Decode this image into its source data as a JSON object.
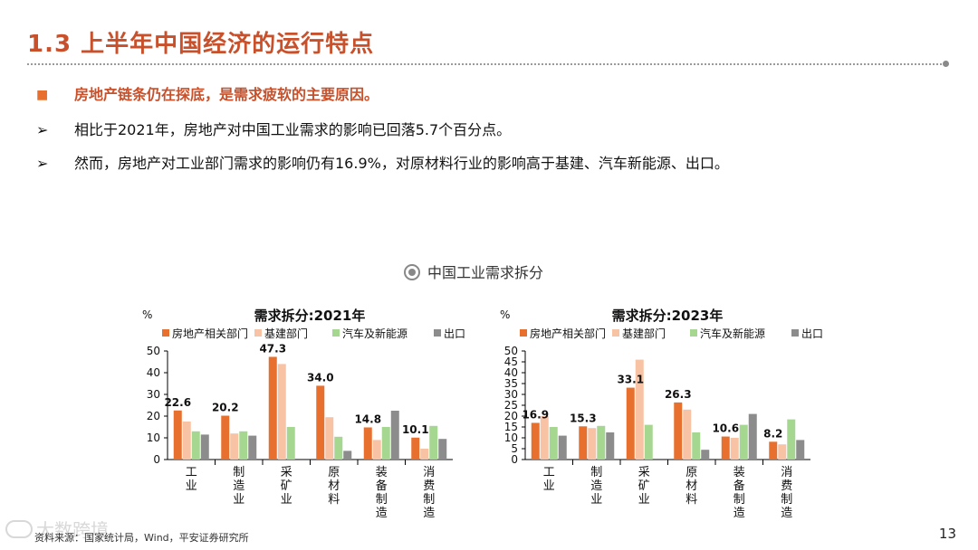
{
  "slide": {
    "title": "1.3 上半年中国经济的运行特点",
    "bullets": [
      {
        "marker": "■",
        "text": "房地产链条仍在探底，是需求疲软的主要原因。"
      },
      {
        "marker": "➢",
        "text": "相比于2021年，房地产对中国工业需求的影响已回落5.7个百分点。"
      },
      {
        "marker": "➢",
        "text": "然而，房地产对工业部门需求的影响仍有16.9%，对原材料行业的影响高于基建、汽车新能源、出口。"
      }
    ],
    "figure_title": "中国工业需求拆分",
    "source": "资料来源：国家统计局，Wind，平安证券研究所",
    "page_number": "13",
    "watermark": "大数跨境"
  },
  "colors": {
    "title": "#c8502a",
    "series": [
      "#e8702e",
      "#f8c3a4",
      "#a6d791",
      "#8c8c8c"
    ]
  },
  "chart_data": [
    {
      "type": "bar",
      "title": "需求拆分:2021年",
      "ylabel": "%",
      "ylim": [
        0,
        50
      ],
      "yticks": [
        0,
        10,
        20,
        30,
        40,
        50
      ],
      "grid": false,
      "legend": "top",
      "categories": [
        "工业",
        "制造业",
        "采矿业",
        "原材料",
        "装备制造",
        "消费制造"
      ],
      "series": [
        {
          "name": "房地产相关部门",
          "values": [
            22.6,
            20.2,
            47.3,
            34.0,
            14.8,
            10.1
          ]
        },
        {
          "name": "基建部门",
          "values": [
            17.5,
            12.0,
            44.0,
            19.5,
            9.0,
            5.0
          ]
        },
        {
          "name": "汽车及新能源",
          "values": [
            13.0,
            13.0,
            15.0,
            10.5,
            15.0,
            15.5
          ]
        },
        {
          "name": "出口",
          "values": [
            11.5,
            11.0,
            0,
            4.0,
            22.5,
            9.5
          ]
        }
      ],
      "data_labels": [
        "22.6",
        "20.2",
        "47.3",
        "34.0",
        "14.8",
        "10.1"
      ]
    },
    {
      "type": "bar",
      "title": "需求拆分:2023年",
      "ylabel": "%",
      "ylim": [
        0,
        50
      ],
      "yticks": [
        0,
        5,
        10,
        15,
        20,
        25,
        30,
        35,
        40,
        45,
        50
      ],
      "grid": false,
      "legend": "top",
      "categories": [
        "工业",
        "制造业",
        "采矿业",
        "原材料",
        "装备制造",
        "消费制造"
      ],
      "series": [
        {
          "name": "房地产相关部门",
          "values": [
            16.9,
            15.3,
            33.1,
            26.3,
            10.6,
            8.2
          ]
        },
        {
          "name": "基建部门",
          "values": [
            20.0,
            14.5,
            46.0,
            23.0,
            10.0,
            7.0
          ]
        },
        {
          "name": "汽车及新能源",
          "values": [
            15.0,
            15.5,
            16.0,
            12.5,
            16.0,
            18.5
          ]
        },
        {
          "name": "出口",
          "values": [
            11.0,
            12.5,
            0,
            4.5,
            21.0,
            9.0
          ]
        }
      ],
      "data_labels": [
        "16.9",
        "15.3",
        "33.1",
        "26.3",
        "10.6",
        "8.2"
      ]
    }
  ]
}
